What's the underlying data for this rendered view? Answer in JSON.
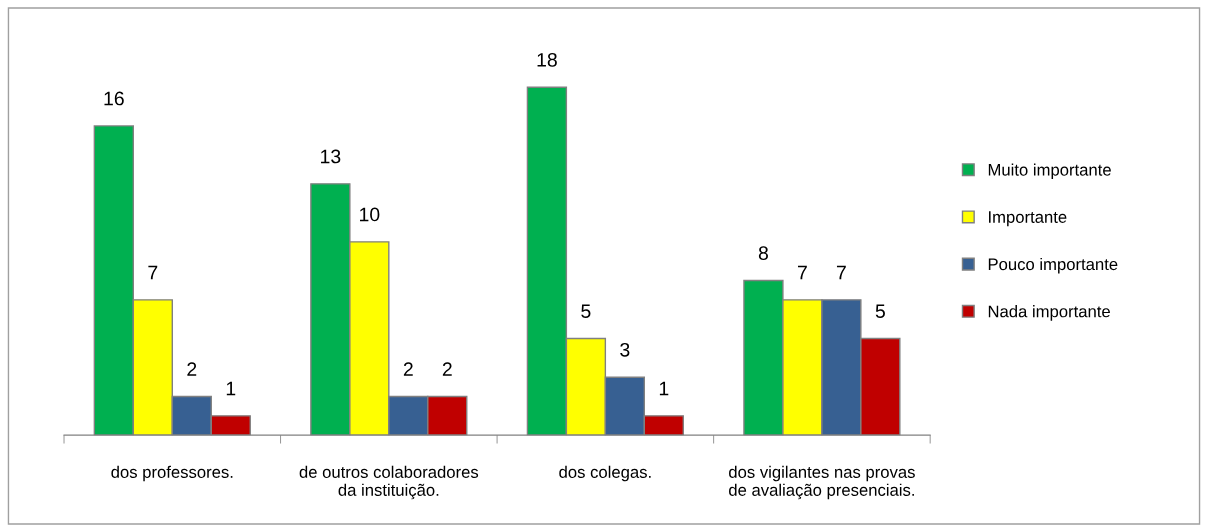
{
  "chart_data": {
    "type": "bar",
    "categories": [
      "dos professores.",
      "de outros colaboradores\nda instituição.",
      "dos colegas.",
      "dos vigilantes nas provas\nde avaliação presenciais."
    ],
    "series": [
      {
        "name": "Muito importante",
        "color": "#00b050",
        "values": [
          16,
          13,
          18,
          8
        ]
      },
      {
        "name": "Importante",
        "color": "#ffff00",
        "values": [
          7,
          10,
          5,
          7
        ]
      },
      {
        "name": "Pouco importante",
        "color": "#376092",
        "values": [
          2,
          2,
          3,
          7
        ]
      },
      {
        "name": "Nada importante",
        "color": "#c00000",
        "values": [
          1,
          2,
          1,
          5
        ]
      }
    ],
    "data_labels": true,
    "legend": "right",
    "grid": false,
    "tick_labels": "x"
  }
}
